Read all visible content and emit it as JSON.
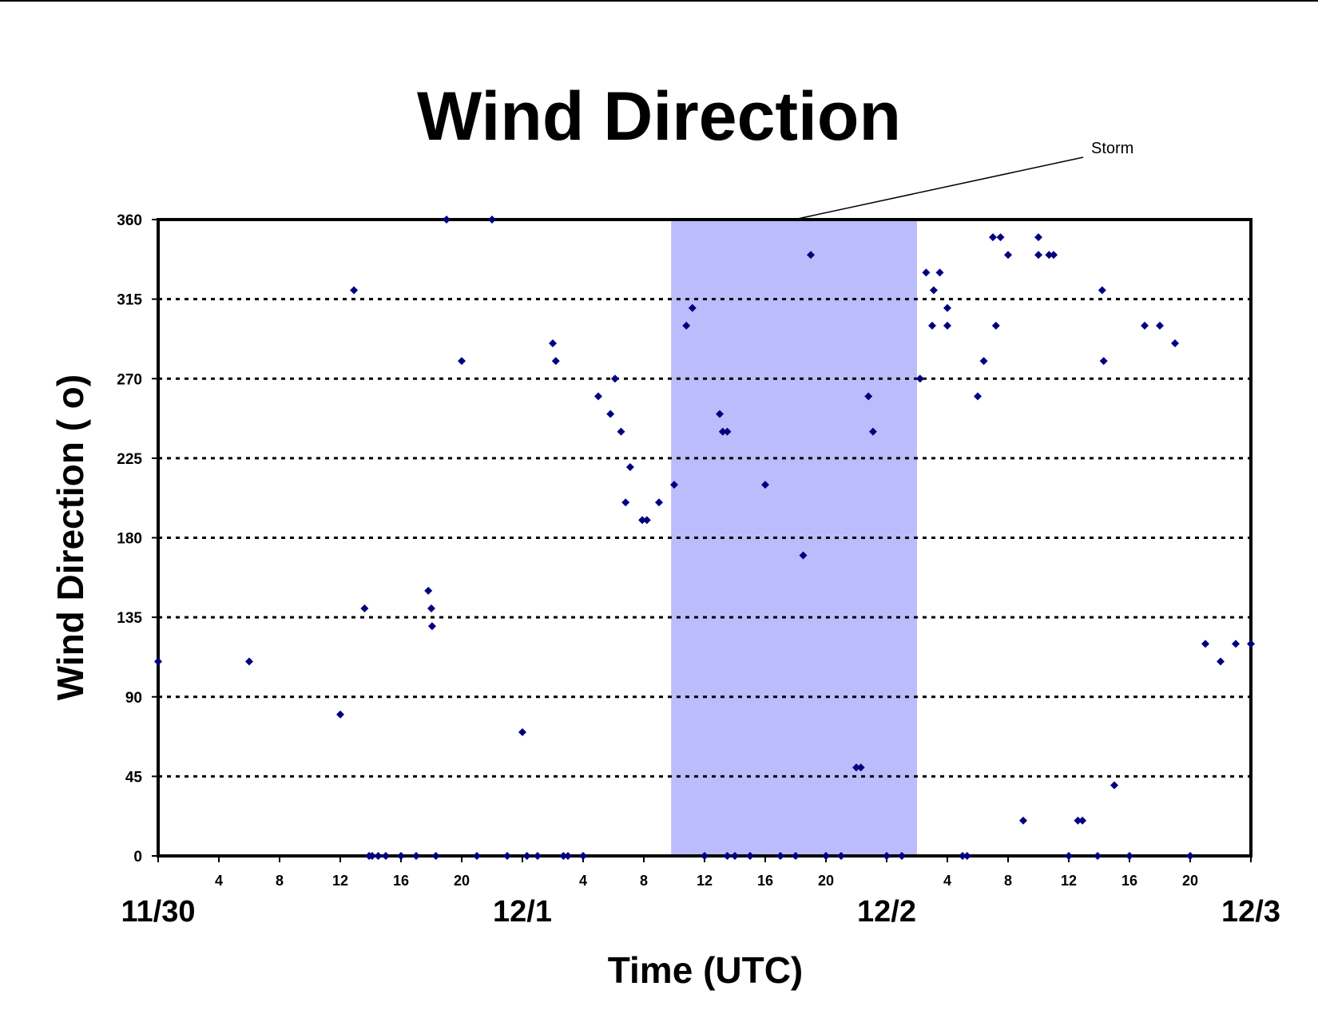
{
  "chart_data": {
    "type": "scatter",
    "title": "Wind Direction",
    "xlabel": "Time (UTC)",
    "ylabel": "Wind Direction ( o)",
    "ylim": [
      0,
      360
    ],
    "yticks": [
      0,
      45,
      90,
      135,
      180,
      225,
      270,
      315,
      360
    ],
    "xlim": [
      0,
      72
    ],
    "x_unit": "hours since 11/30 00 UTC",
    "xtick_labels": [
      {
        "x": 4,
        "label": "4"
      },
      {
        "x": 8,
        "label": "8"
      },
      {
        "x": 12,
        "label": "12"
      },
      {
        "x": 16,
        "label": "16"
      },
      {
        "x": 20,
        "label": "20"
      },
      {
        "x": 28,
        "label": "4"
      },
      {
        "x": 32,
        "label": "8"
      },
      {
        "x": 36,
        "label": "12"
      },
      {
        "x": 40,
        "label": "16"
      },
      {
        "x": 44,
        "label": "20"
      },
      {
        "x": 52,
        "label": "4"
      },
      {
        "x": 56,
        "label": "8"
      },
      {
        "x": 60,
        "label": "12"
      },
      {
        "x": 64,
        "label": "16"
      },
      {
        "x": 68,
        "label": "20"
      }
    ],
    "date_labels": [
      {
        "x": 0,
        "label": "11/30"
      },
      {
        "x": 24,
        "label": "12/1"
      },
      {
        "x": 48,
        "label": "12/2"
      },
      {
        "x": 72,
        "label": "12/3"
      }
    ],
    "grid": "horizontal dotted",
    "marker_color": "#00007f",
    "shade": {
      "x_start": 33.8,
      "x_end": 50.0,
      "color": "#bbbcfc",
      "label": "Storm"
    },
    "series": [
      {
        "name": "",
        "points": [
          [
            0,
            110
          ],
          [
            6,
            110
          ],
          [
            12,
            80
          ],
          [
            12.9,
            320
          ],
          [
            13.6,
            140
          ],
          [
            13.9,
            0
          ],
          [
            14.1,
            0
          ],
          [
            14.5,
            0
          ],
          [
            15.0,
            0
          ],
          [
            16.0,
            0
          ],
          [
            17.0,
            0
          ],
          [
            17.8,
            150
          ],
          [
            18.0,
            140
          ],
          [
            18.05,
            130
          ],
          [
            18.3,
            0
          ],
          [
            19.0,
            360
          ],
          [
            20.0,
            280
          ],
          [
            21.0,
            0
          ],
          [
            22.0,
            360
          ],
          [
            23.0,
            0
          ],
          [
            24.0,
            70
          ],
          [
            24.3,
            0
          ],
          [
            25.0,
            0
          ],
          [
            26.0,
            290
          ],
          [
            26.2,
            280
          ],
          [
            26.7,
            0
          ],
          [
            27.0,
            0
          ],
          [
            28.0,
            0
          ],
          [
            29.0,
            260
          ],
          [
            29.8,
            250
          ],
          [
            30.1,
            270
          ],
          [
            30.5,
            240
          ],
          [
            30.8,
            200
          ],
          [
            31.1,
            220
          ],
          [
            31.9,
            190
          ],
          [
            32.2,
            190
          ],
          [
            33.0,
            200
          ],
          [
            34.0,
            210
          ],
          [
            34.8,
            300
          ],
          [
            35.2,
            310
          ],
          [
            36.0,
            0
          ],
          [
            37.0,
            250
          ],
          [
            37.2,
            240
          ],
          [
            37.5,
            240
          ],
          [
            37.5,
            0
          ],
          [
            38.0,
            0
          ],
          [
            39.0,
            0
          ],
          [
            40.0,
            210
          ],
          [
            41.0,
            0
          ],
          [
            42.0,
            0
          ],
          [
            42.5,
            170
          ],
          [
            43.0,
            340
          ],
          [
            44.0,
            0
          ],
          [
            45.0,
            0
          ],
          [
            46.0,
            50
          ],
          [
            46.3,
            50
          ],
          [
            46.8,
            260
          ],
          [
            47.1,
            240
          ],
          [
            48.0,
            0
          ],
          [
            49.0,
            0
          ],
          [
            50.2,
            270
          ],
          [
            50.6,
            330
          ],
          [
            51.0,
            300
          ],
          [
            51.1,
            320
          ],
          [
            51.5,
            330
          ],
          [
            52.0,
            300
          ],
          [
            52.0,
            310
          ],
          [
            53.0,
            0
          ],
          [
            53.3,
            0
          ],
          [
            54.0,
            260
          ],
          [
            54.4,
            280
          ],
          [
            55.0,
            350
          ],
          [
            55.2,
            300
          ],
          [
            55.5,
            350
          ],
          [
            56.0,
            340
          ],
          [
            57.0,
            20
          ],
          [
            58.0,
            340
          ],
          [
            58.0,
            350
          ],
          [
            58.7,
            340
          ],
          [
            59.0,
            340
          ],
          [
            60.0,
            0
          ],
          [
            60.6,
            20
          ],
          [
            60.9,
            20
          ],
          [
            61.9,
            0
          ],
          [
            62.2,
            320
          ],
          [
            62.3,
            280
          ],
          [
            63.0,
            40
          ],
          [
            64.0,
            0
          ],
          [
            65.0,
            300
          ],
          [
            66.0,
            300
          ],
          [
            67.0,
            290
          ],
          [
            68.0,
            0
          ],
          [
            69.0,
            120
          ],
          [
            70.0,
            110
          ],
          [
            71.0,
            120
          ],
          [
            72.0,
            120
          ]
        ]
      }
    ]
  }
}
